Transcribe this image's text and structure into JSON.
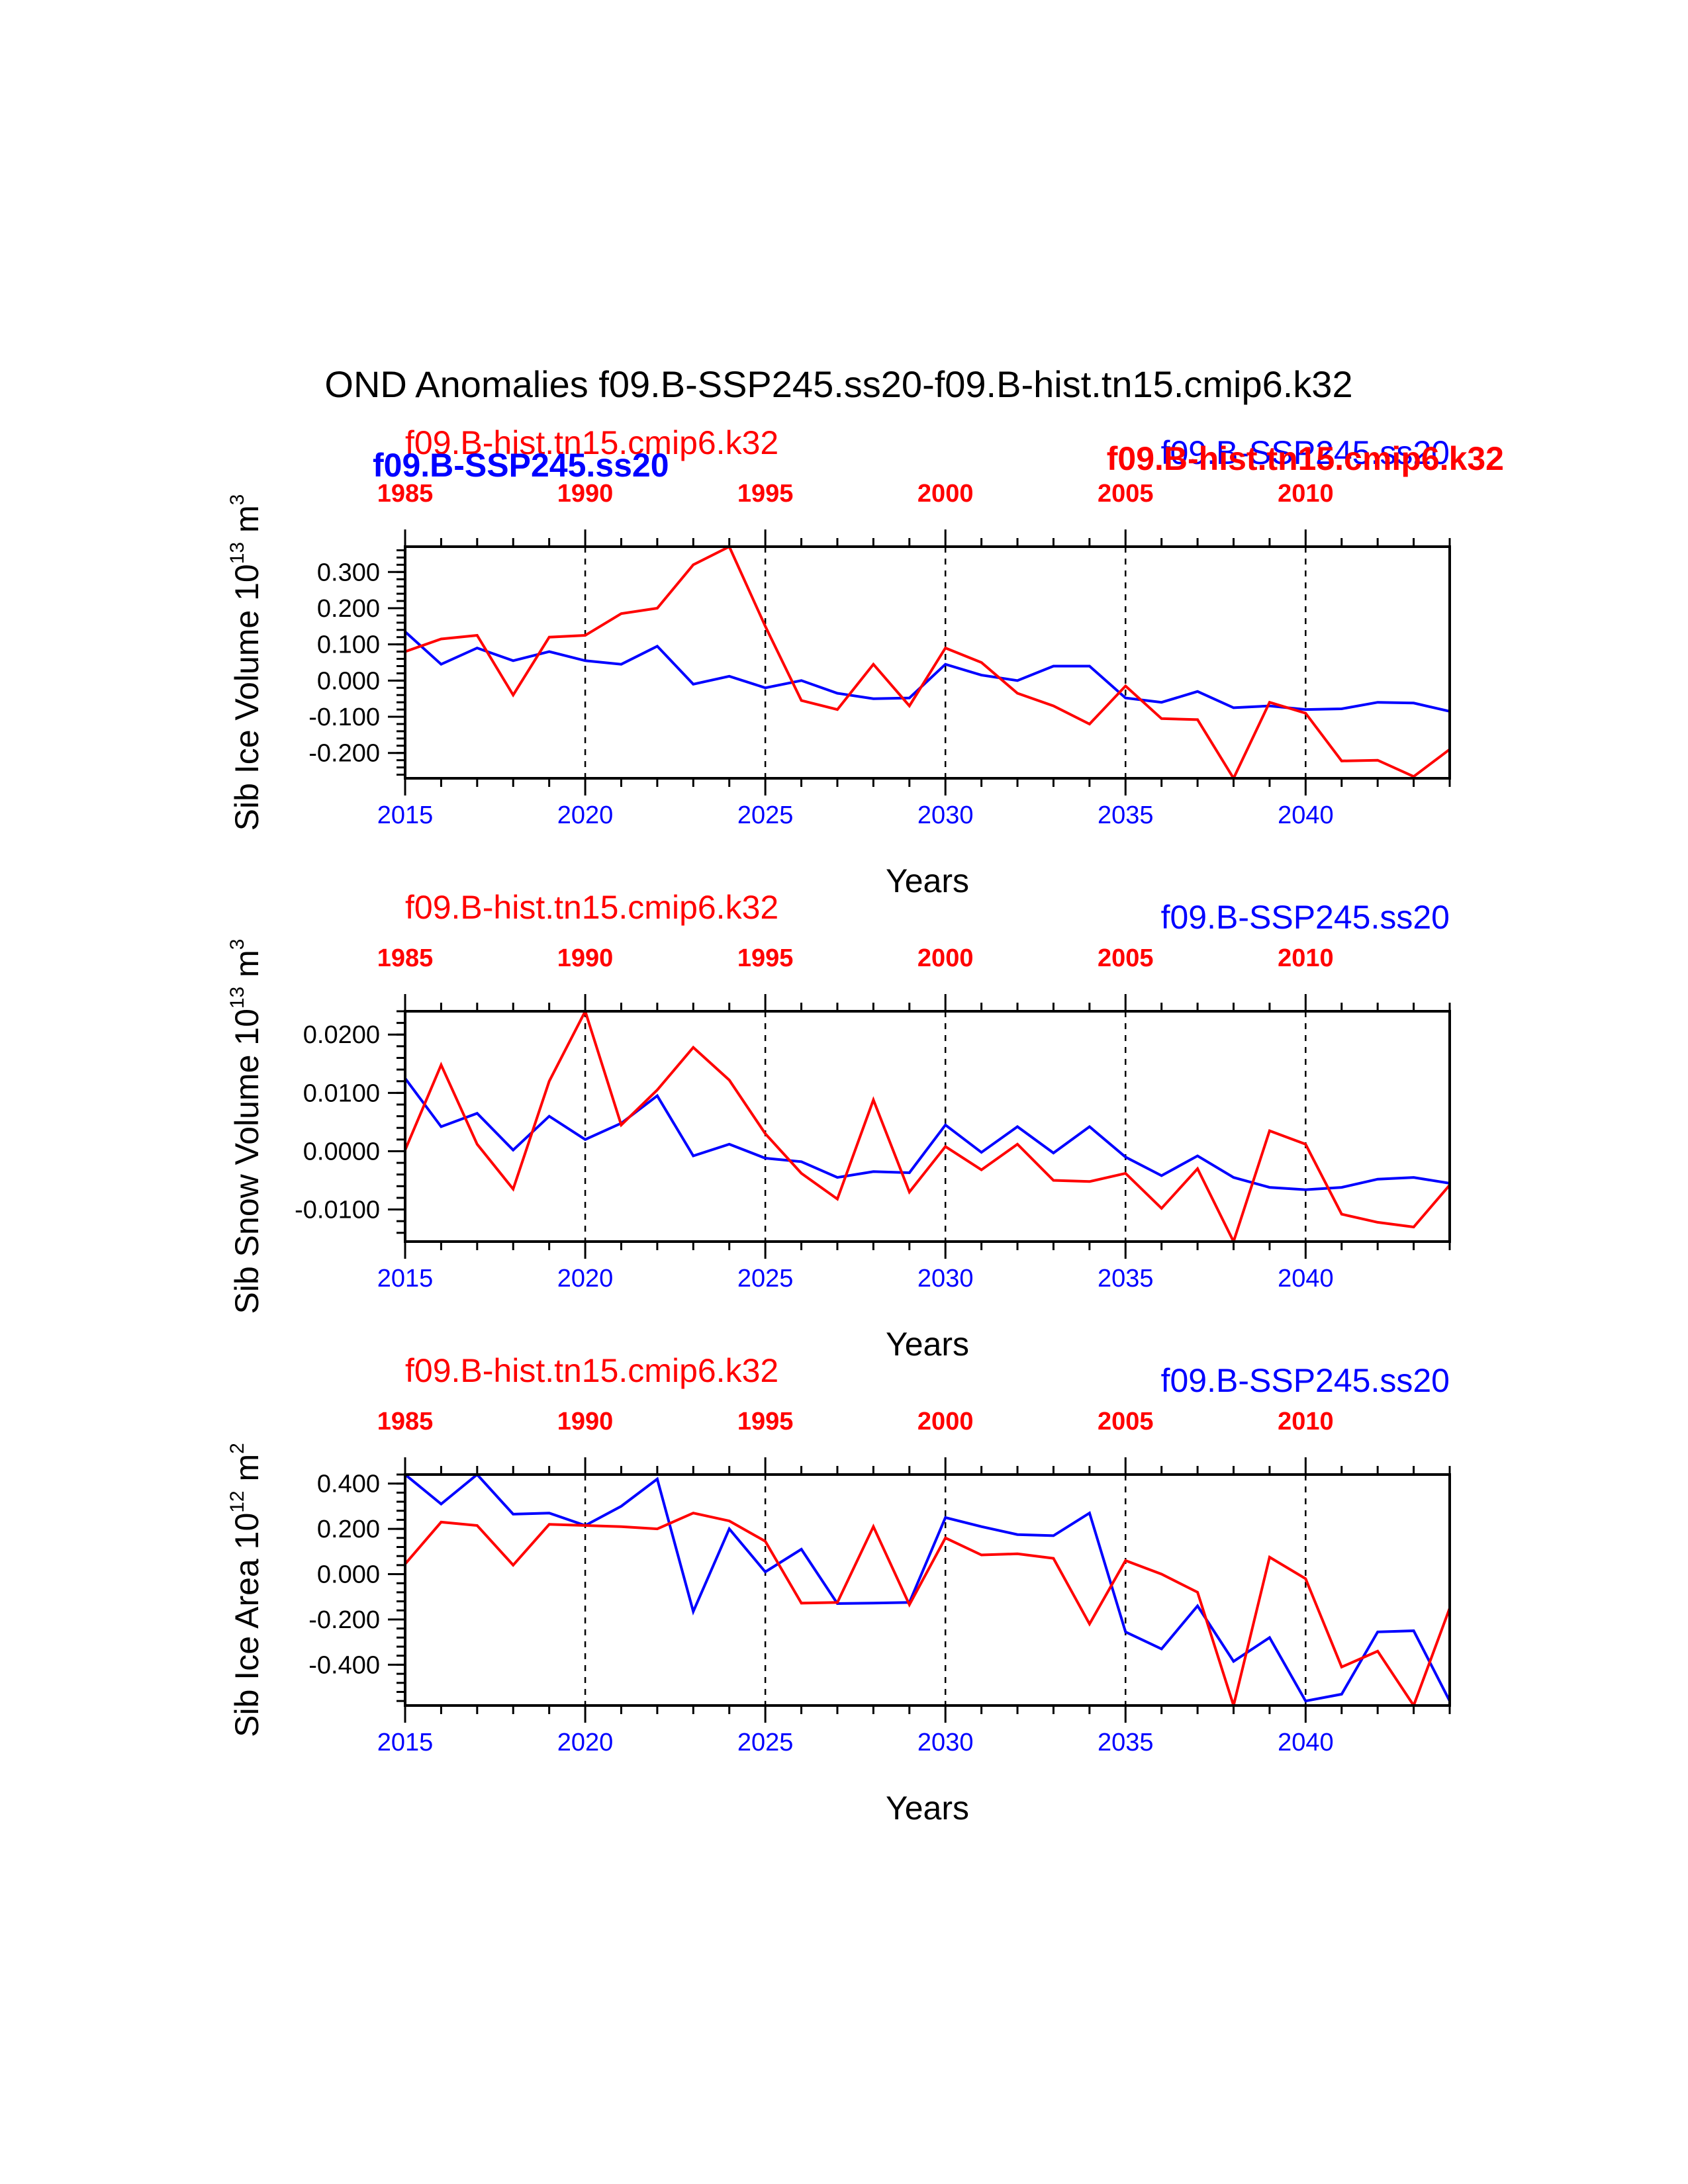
{
  "title": "OND Anomalies f09.B-SSP245.ss20-f09.B-hist.tn15.cmip6.k32",
  "colors": {
    "ssp": "#0000ff",
    "hist": "#ff0000",
    "axis": "#000000"
  },
  "overlap_labels": {
    "left": "f09.B-SSP245.ss20",
    "right": "f09.B-hist.tn15.cmip6.k32"
  },
  "chart_data": [
    {
      "type": "line",
      "ylabel": "Sib Ice Volume 10",
      "ylabel_exp": "13",
      "ylabel_unit": " m",
      "ylabel_unit_exp": "3",
      "xlabel": "Years",
      "left_series_label": "f09.B-hist.tn15.cmip6.k32",
      "right_series_label": "f09.B-SSP245.ss20",
      "xlim": [
        2015,
        2044
      ],
      "top_xlim": [
        1985,
        2014
      ],
      "ylim": [
        -0.27,
        0.37
      ],
      "yticks": [
        -0.2,
        -0.1,
        0.0,
        0.1,
        0.2,
        0.3
      ],
      "ytick_labels": [
        "-0.200",
        "-0.100",
        "0.000",
        "0.100",
        "0.200",
        "0.300"
      ],
      "minor_step": 0.02,
      "bottom_ticks": [
        "2015",
        "2020",
        "2025",
        "2030",
        "2035",
        "2040"
      ],
      "top_ticks": [
        "1985",
        "1990",
        "1995",
        "2000",
        "2005",
        "2010"
      ],
      "x": [
        2015,
        2016,
        2017,
        2018,
        2019,
        2020,
        2021,
        2022,
        2023,
        2024,
        2025,
        2026,
        2027,
        2028,
        2029,
        2030,
        2031,
        2032,
        2033,
        2034,
        2035,
        2036,
        2037,
        2038,
        2039,
        2040,
        2041,
        2042,
        2043,
        2044
      ],
      "series": [
        {
          "name": "f09.B-SSP245.ss20",
          "color": "#0000ff",
          "values": [
            0.135,
            0.045,
            0.09,
            0.055,
            0.08,
            0.055,
            0.045,
            0.095,
            -0.01,
            0.012,
            -0.02,
            0.0,
            -0.035,
            -0.05,
            -0.048,
            0.045,
            0.015,
            0.0,
            0.04,
            0.04,
            -0.048,
            -0.06,
            -0.03,
            -0.075,
            -0.07,
            -0.08,
            -0.078,
            -0.06,
            -0.062,
            -0.085
          ]
        },
        {
          "name": "f09.B-hist.tn15.cmip6.k32",
          "color": "#ff0000",
          "values": [
            0.08,
            0.115,
            0.125,
            -0.04,
            0.12,
            0.125,
            0.185,
            0.2,
            0.32,
            0.37,
            0.15,
            -0.055,
            -0.08,
            0.045,
            -0.07,
            0.09,
            0.05,
            -0.035,
            -0.07,
            -0.12,
            -0.015,
            -0.105,
            -0.108,
            -0.27,
            -0.06,
            -0.09,
            -0.222,
            -0.22,
            -0.265,
            -0.19
          ]
        }
      ]
    },
    {
      "type": "line",
      "ylabel": "Sib Snow Volume 10",
      "ylabel_exp": "13",
      "ylabel_unit": " m",
      "ylabel_unit_exp": "3",
      "xlabel": "Years",
      "left_series_label": "f09.B-hist.tn15.cmip6.k32",
      "right_series_label": "f09.B-SSP245.ss20",
      "xlim": [
        2015,
        2044
      ],
      "top_xlim": [
        1985,
        2014
      ],
      "ylim": [
        -0.0155,
        0.024
      ],
      "yticks": [
        -0.01,
        0.0,
        0.01,
        0.02
      ],
      "ytick_labels": [
        "-0.0100",
        "0.0000",
        "0.0100",
        "0.0200"
      ],
      "minor_step": 0.002,
      "bottom_ticks": [
        "2015",
        "2020",
        "2025",
        "2030",
        "2035",
        "2040"
      ],
      "top_ticks": [
        "1985",
        "1990",
        "1995",
        "2000",
        "2005",
        "2010"
      ],
      "x": [
        2015,
        2016,
        2017,
        2018,
        2019,
        2020,
        2021,
        2022,
        2023,
        2024,
        2025,
        2026,
        2027,
        2028,
        2029,
        2030,
        2031,
        2032,
        2033,
        2034,
        2035,
        2036,
        2037,
        2038,
        2039,
        2040,
        2041,
        2042,
        2043,
        2044
      ],
      "series": [
        {
          "name": "f09.B-SSP245.ss20",
          "color": "#0000ff",
          "values": [
            0.0125,
            0.0042,
            0.0065,
            0.0002,
            0.006,
            0.002,
            0.0048,
            0.0095,
            -0.0008,
            0.0012,
            -0.0012,
            -0.0018,
            -0.0045,
            -0.0035,
            -0.0037,
            0.0045,
            -0.0002,
            0.0042,
            -0.0003,
            0.0042,
            -0.001,
            -0.0042,
            -0.0008,
            -0.0045,
            -0.0062,
            -0.0066,
            -0.0062,
            -0.0048,
            -0.0045,
            -0.0055
          ]
        },
        {
          "name": "f09.B-hist.tn15.cmip6.k32",
          "color": "#ff0000",
          "values": [
            0.0002,
            0.0148,
            0.0012,
            -0.0065,
            0.012,
            0.024,
            0.0045,
            0.0105,
            0.0178,
            0.0122,
            0.003,
            -0.0038,
            -0.0082,
            0.0088,
            -0.007,
            0.0008,
            -0.0032,
            0.0012,
            -0.005,
            -0.0052,
            -0.0038,
            -0.0098,
            -0.003,
            -0.0155,
            0.0035,
            0.0012,
            -0.0108,
            -0.0122,
            -0.013,
            -0.0058
          ]
        }
      ]
    },
    {
      "type": "line",
      "ylabel": "Sib Ice Area 10",
      "ylabel_exp": "12",
      "ylabel_unit": " m",
      "ylabel_unit_exp": "2",
      "xlabel": "Years",
      "left_series_label": "f09.B-hist.tn15.cmip6.k32",
      "right_series_label": "f09.B-SSP245.ss20",
      "xlim": [
        2015,
        2044
      ],
      "top_xlim": [
        1985,
        2014
      ],
      "ylim": [
        -0.58,
        0.44
      ],
      "yticks": [
        -0.4,
        -0.2,
        0.0,
        0.2,
        0.4
      ],
      "ytick_labels": [
        "-0.400",
        "-0.200",
        "0.000",
        "0.200",
        "0.400"
      ],
      "minor_step": 0.04,
      "bottom_ticks": [
        "2015",
        "2020",
        "2025",
        "2030",
        "2035",
        "2040"
      ],
      "top_ticks": [
        "1985",
        "1990",
        "1995",
        "2000",
        "2005",
        "2010"
      ],
      "x": [
        2015,
        2016,
        2017,
        2018,
        2019,
        2020,
        2021,
        2022,
        2023,
        2024,
        2025,
        2026,
        2027,
        2028,
        2029,
        2030,
        2031,
        2032,
        2033,
        2034,
        2035,
        2036,
        2037,
        2038,
        2039,
        2040,
        2041,
        2042,
        2043,
        2044
      ],
      "series": [
        {
          "name": "f09.B-SSP245.ss20",
          "color": "#0000ff",
          "values": [
            0.44,
            0.31,
            0.44,
            0.265,
            0.27,
            0.215,
            0.3,
            0.42,
            -0.165,
            0.2,
            0.01,
            0.11,
            -0.13,
            -0.128,
            -0.125,
            0.25,
            0.21,
            0.175,
            0.17,
            0.27,
            -0.255,
            -0.33,
            -0.14,
            -0.385,
            -0.28,
            -0.56,
            -0.53,
            -0.255,
            -0.25,
            -0.56
          ]
        },
        {
          "name": "f09.B-hist.tn15.cmip6.k32",
          "color": "#ff0000",
          "values": [
            0.045,
            0.23,
            0.215,
            0.04,
            0.22,
            0.215,
            0.21,
            0.2,
            0.27,
            0.235,
            0.145,
            -0.128,
            -0.125,
            0.21,
            -0.135,
            0.16,
            0.085,
            0.09,
            0.07,
            -0.22,
            0.06,
            0.0,
            -0.08,
            -0.58,
            0.075,
            -0.02,
            -0.41,
            -0.34,
            -0.58,
            -0.15
          ]
        }
      ]
    }
  ]
}
